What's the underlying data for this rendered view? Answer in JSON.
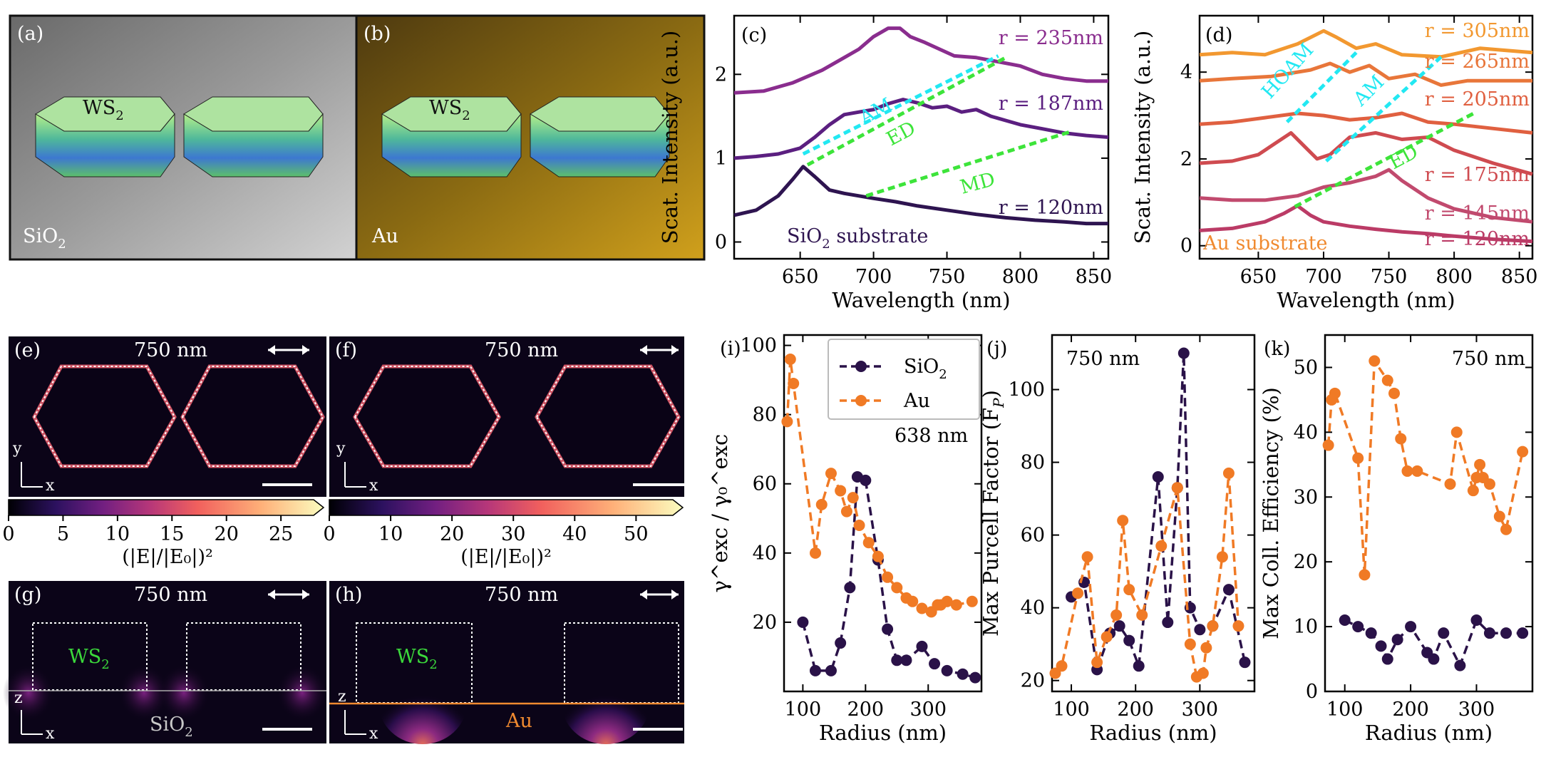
{
  "chart_data": [
    {
      "id": "a",
      "type": "image",
      "label": "(a)",
      "texts": {
        "material": "WS",
        "material_sub": "2",
        "substrate": "SiO",
        "substrate_sub": "2"
      }
    },
    {
      "id": "b",
      "type": "image",
      "label": "(b)",
      "texts": {
        "material": "WS",
        "material_sub": "2",
        "substrate": "Au"
      }
    },
    {
      "id": "c",
      "type": "line",
      "label": "(c)",
      "xlabel": "Wavelength (nm)",
      "ylabel": "Scat. Intensity (a.u.)",
      "xlim": [
        605,
        860
      ],
      "ylim": [
        -0.2,
        2.7
      ],
      "xticks": [
        650,
        700,
        750,
        800,
        850
      ],
      "yticks": [
        0,
        1,
        2
      ],
      "annotation": "SiO",
      "annotation_sub": "2",
      "annotation_suffix": " substrate",
      "series": [
        {
          "name": "r = 120nm",
          "color": "#2e1450",
          "x": [
            605,
            620,
            635,
            645,
            652,
            660,
            670,
            680,
            690,
            700,
            715,
            730,
            750,
            770,
            790,
            810,
            830,
            845,
            860
          ],
          "y": [
            0.32,
            0.38,
            0.55,
            0.75,
            0.9,
            0.78,
            0.62,
            0.58,
            0.55,
            0.52,
            0.48,
            0.43,
            0.38,
            0.33,
            0.29,
            0.26,
            0.24,
            0.22,
            0.22
          ]
        },
        {
          "name": "r = 187nm",
          "color": "#5b1f80",
          "x": [
            605,
            620,
            635,
            650,
            660,
            670,
            680,
            690,
            700,
            710,
            720,
            730,
            740,
            750,
            760,
            770,
            780,
            790,
            800,
            815,
            830,
            845,
            860
          ],
          "y": [
            1.0,
            1.02,
            1.05,
            1.12,
            1.25,
            1.4,
            1.52,
            1.55,
            1.58,
            1.65,
            1.7,
            1.66,
            1.6,
            1.62,
            1.55,
            1.58,
            1.5,
            1.45,
            1.4,
            1.35,
            1.3,
            1.27,
            1.25
          ]
        },
        {
          "name": "r = 235nm",
          "color": "#8a2d8e",
          "x": [
            605,
            625,
            645,
            665,
            680,
            690,
            700,
            710,
            718,
            725,
            735,
            745,
            755,
            770,
            785,
            800,
            815,
            830,
            845,
            860
          ],
          "y": [
            1.78,
            1.8,
            1.9,
            2.05,
            2.2,
            2.3,
            2.45,
            2.55,
            2.55,
            2.45,
            2.38,
            2.3,
            2.22,
            2.2,
            2.15,
            2.1,
            2.0,
            1.95,
            1.92,
            1.92
          ]
        }
      ],
      "guides": [
        {
          "name": "AM",
          "color": "#22e8f2",
          "from": [
            652,
            1.05
          ],
          "to": [
            785,
            2.22
          ]
        },
        {
          "name": "ED",
          "color": "#3de43a",
          "from": [
            655,
            0.92
          ],
          "to": [
            790,
            2.2
          ]
        },
        {
          "name": "MD",
          "color": "#3de43a",
          "from": [
            695,
            0.55
          ],
          "to": [
            835,
            1.32
          ]
        }
      ]
    },
    {
      "id": "d",
      "type": "line",
      "label": "(d)",
      "xlabel": "Wavelength (nm)",
      "ylabel": "Scat. Intensity (a.u.)",
      "xlim": [
        605,
        860
      ],
      "ylim": [
        -0.3,
        5.3
      ],
      "xticks": [
        650,
        700,
        750,
        800,
        850
      ],
      "yticks": [
        0,
        2,
        4
      ],
      "annotation": "Au substrate",
      "series": [
        {
          "name": "r = 120nm",
          "color": "#bb3b66",
          "x": [
            605,
            630,
            655,
            670,
            680,
            690,
            700,
            720,
            740,
            760,
            780,
            800,
            830,
            860
          ],
          "y": [
            0.35,
            0.4,
            0.55,
            0.75,
            0.92,
            0.7,
            0.55,
            0.45,
            0.38,
            0.32,
            0.28,
            0.22,
            0.15,
            0.1
          ]
        },
        {
          "name": "r = 145nm",
          "color": "#c14a6e",
          "x": [
            605,
            630,
            655,
            680,
            700,
            720,
            740,
            750,
            760,
            780,
            800,
            830,
            860
          ],
          "y": [
            1.1,
            1.05,
            1.05,
            1.15,
            1.35,
            1.45,
            1.6,
            1.75,
            1.5,
            1.1,
            0.85,
            0.65,
            0.55
          ]
        },
        {
          "name": "r = 175nm",
          "color": "#cf4b50",
          "x": [
            605,
            630,
            650,
            665,
            675,
            685,
            695,
            705,
            720,
            740,
            760,
            780,
            800,
            830,
            860
          ],
          "y": [
            1.9,
            1.95,
            2.1,
            2.4,
            2.6,
            2.3,
            2.0,
            2.1,
            2.5,
            2.6,
            2.45,
            2.5,
            2.2,
            1.9,
            1.65
          ]
        },
        {
          "name": "r = 205nm",
          "color": "#e06040",
          "x": [
            605,
            630,
            655,
            680,
            700,
            720,
            740,
            760,
            780,
            800,
            830,
            860
          ],
          "y": [
            2.8,
            2.85,
            2.95,
            3.05,
            3.0,
            2.9,
            2.95,
            3.05,
            2.85,
            2.8,
            2.7,
            2.6
          ]
        },
        {
          "name": "r = 265nm",
          "color": "#e8763a",
          "x": [
            605,
            630,
            660,
            690,
            705,
            720,
            735,
            750,
            770,
            790,
            810,
            835,
            860
          ],
          "y": [
            3.8,
            3.85,
            3.9,
            4.05,
            4.2,
            4.0,
            4.15,
            3.85,
            3.95,
            3.7,
            3.8,
            3.8,
            3.8
          ]
        },
        {
          "name": "r = 305nm",
          "color": "#f29830",
          "x": [
            605,
            630,
            655,
            680,
            700,
            710,
            725,
            740,
            760,
            790,
            820,
            840,
            860
          ],
          "y": [
            4.4,
            4.45,
            4.4,
            4.65,
            4.95,
            4.8,
            4.55,
            4.65,
            4.4,
            4.35,
            4.55,
            4.5,
            4.45
          ]
        }
      ],
      "guides": [
        {
          "name": "HOAM",
          "color": "#22e8f2",
          "from": [
            672,
            2.85
          ],
          "to": [
            725,
            4.45
          ]
        },
        {
          "name": "AM",
          "color": "#22e8f2",
          "from": [
            702,
            1.95
          ],
          "to": [
            790,
            4.35
          ]
        },
        {
          "name": "ED",
          "color": "#3de43a",
          "from": [
            678,
            0.9
          ],
          "to": [
            815,
            3.05
          ]
        }
      ]
    },
    {
      "id": "e",
      "type": "heatmap",
      "label": "(e)",
      "wavelength": "750 nm",
      "axes": [
        "y",
        "x"
      ],
      "cbar_ticks": [
        "0",
        "5",
        "10",
        "15",
        "20",
        "25"
      ],
      "cbar_range": [
        0,
        28
      ],
      "cbar_label": "(|E|/|E₀|)²"
    },
    {
      "id": "f",
      "type": "heatmap",
      "label": "(f)",
      "wavelength": "750 nm",
      "axes": [
        "y",
        "x"
      ],
      "cbar_ticks": [
        "0",
        "10",
        "20",
        "30",
        "40",
        "50"
      ],
      "cbar_range": [
        0,
        56
      ],
      "cbar_label": "(|E|/|E₀|)²"
    },
    {
      "id": "g",
      "type": "heatmap",
      "label": "(g)",
      "wavelength": "750 nm",
      "axes": [
        "z",
        "x"
      ],
      "material": "WS",
      "material_sub": "2",
      "substrate": "SiO",
      "substrate_sub": "2"
    },
    {
      "id": "h",
      "type": "heatmap",
      "label": "(h)",
      "wavelength": "750 nm",
      "axes": [
        "z",
        "x"
      ],
      "material": "WS",
      "material_sub": "2",
      "substrate": "Au"
    },
    {
      "id": "i",
      "type": "line",
      "label": "(i)",
      "xlabel": "Radius (nm)",
      "ylabel": "γ^exc / γ₀^exc",
      "note": "638 nm",
      "xlim": [
        70,
        385
      ],
      "ylim": [
        0,
        103
      ],
      "xticks": [
        100,
        200,
        300
      ],
      "yticks": [
        20,
        40,
        60,
        80,
        100
      ],
      "legend": {
        "placement": "top-left",
        "entries": [
          "SiO",
          "Au"
        ],
        "entry_sub": [
          "2",
          ""
        ]
      },
      "series": [
        {
          "name": "SiO2",
          "color": "#2a1248",
          "x": [
            100,
            120,
            145,
            160,
            175,
            187,
            200,
            220,
            235,
            250,
            265,
            290,
            310,
            330,
            355,
            375
          ],
          "y": [
            20,
            6,
            6,
            14,
            30,
            62,
            61,
            38,
            18,
            9,
            9,
            13,
            8,
            6,
            5,
            4
          ]
        },
        {
          "name": "Au",
          "color": "#f07a25",
          "x": [
            75,
            80,
            85,
            120,
            130,
            145,
            160,
            170,
            180,
            190,
            205,
            220,
            235,
            250,
            265,
            275,
            290,
            305,
            315,
            320,
            330,
            345,
            370
          ],
          "y": [
            78,
            96,
            89,
            40,
            54,
            63,
            58,
            52,
            56,
            48,
            43,
            39,
            33,
            30,
            27,
            26,
            24,
            23,
            25,
            25,
            26,
            25,
            26
          ]
        }
      ]
    },
    {
      "id": "j",
      "type": "line",
      "label": "(j)",
      "xlabel": "Radius (nm)",
      "ylabel": "Max Purcell Factor (F",
      "ylabel_sub": "P",
      "ylabel_end": ")",
      "note": "750 nm",
      "xlim": [
        70,
        385
      ],
      "ylim": [
        17,
        115
      ],
      "xticks": [
        100,
        200,
        300
      ],
      "yticks": [
        20,
        40,
        60,
        80,
        100
      ],
      "series": [
        {
          "name": "SiO2",
          "color": "#2a1248",
          "x": [
            100,
            120,
            140,
            160,
            175,
            190,
            205,
            235,
            250,
            265,
            275,
            285,
            300,
            320,
            345,
            370
          ],
          "y": [
            43,
            47,
            23,
            33,
            35,
            31,
            24,
            76,
            36,
            73,
            110,
            40,
            34,
            35,
            45,
            25
          ]
        },
        {
          "name": "Au",
          "color": "#f07a25",
          "x": [
            75,
            85,
            110,
            125,
            140,
            155,
            170,
            180,
            190,
            210,
            240,
            265,
            285,
            295,
            305,
            310,
            320,
            335,
            345,
            360
          ],
          "y": [
            22,
            24,
            44,
            54,
            25,
            32,
            38,
            64,
            45,
            38,
            57,
            73,
            30,
            21,
            22,
            29,
            35,
            54,
            77,
            35
          ]
        }
      ]
    },
    {
      "id": "k",
      "type": "line",
      "label": "(k)",
      "xlabel": "Radius (nm)",
      "ylabel": "Max Coll. Efficiency (%)",
      "note": "750 nm",
      "xlim": [
        70,
        385
      ],
      "ylim": [
        0,
        55
      ],
      "xticks": [
        100,
        200,
        300
      ],
      "yticks": [
        0,
        10,
        20,
        30,
        40,
        50
      ],
      "series": [
        {
          "name": "SiO2",
          "color": "#2a1248",
          "x": [
            100,
            120,
            140,
            155,
            165,
            180,
            200,
            225,
            235,
            250,
            275,
            300,
            320,
            345,
            370
          ],
          "y": [
            11,
            10,
            9,
            7,
            5,
            8,
            10,
            6,
            5,
            9,
            4,
            11,
            9,
            9,
            9
          ]
        },
        {
          "name": "Au",
          "color": "#f07a25",
          "x": [
            75,
            80,
            85,
            120,
            130,
            145,
            165,
            175,
            185,
            195,
            210,
            260,
            270,
            295,
            300,
            305,
            310,
            320,
            335,
            345,
            370
          ],
          "y": [
            38,
            45,
            46,
            36,
            18,
            51,
            48,
            46,
            39,
            34,
            34,
            32,
            40,
            31,
            33,
            35,
            33,
            32,
            27,
            25,
            37
          ]
        }
      ]
    }
  ]
}
